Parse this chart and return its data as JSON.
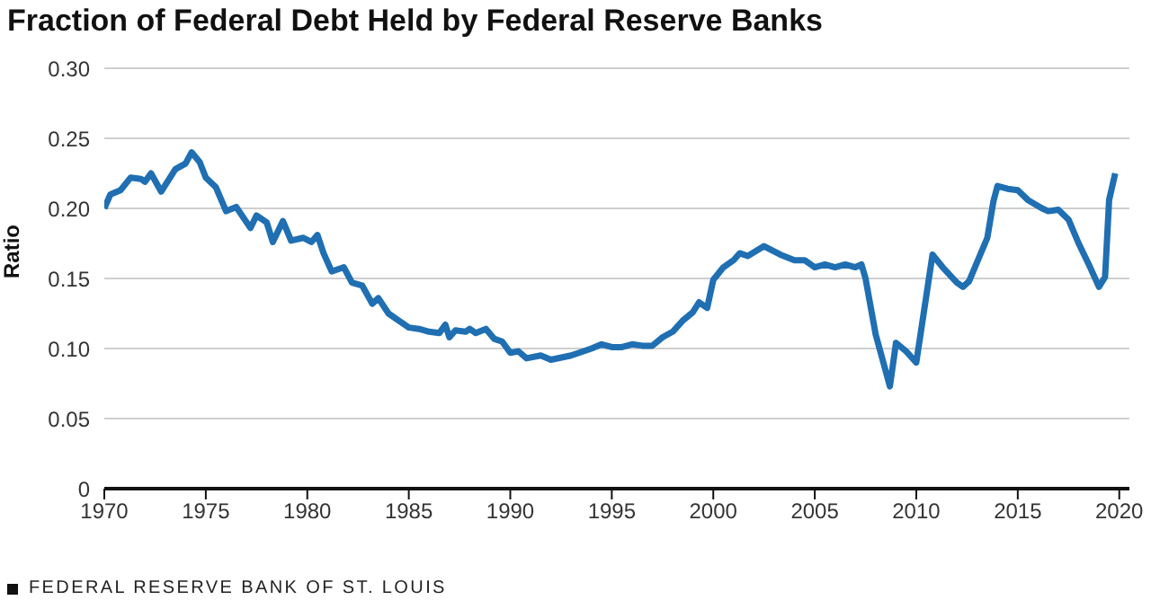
{
  "chart_data": {
    "type": "line",
    "title": "Fraction of Federal Debt Held by Federal Reserve Banks",
    "ylabel": "Ratio",
    "annotations": [
      "FEDERAL RESERVE BANK OF ST. LOUIS"
    ],
    "x": [
      1970,
      1970.3,
      1970.8,
      1971.3,
      1971.8,
      1972,
      1972.3,
      1972.8,
      1973.5,
      1974,
      1974.3,
      1974.7,
      1975,
      1975.5,
      1976,
      1976.5,
      1977.2,
      1977.5,
      1978,
      1978.3,
      1978.8,
      1979.2,
      1979.8,
      1980.2,
      1980.5,
      1980.8,
      1981.2,
      1981.8,
      1982.2,
      1982.7,
      1983.2,
      1983.5,
      1984,
      1984.5,
      1985,
      1985.5,
      1986,
      1986.5,
      1986.8,
      1987,
      1987.3,
      1987.8,
      1988,
      1988.3,
      1988.8,
      1989.2,
      1989.6,
      1990,
      1990.4,
      1990.8,
      1991.5,
      1992,
      1993,
      1994,
      1994.5,
      1995,
      1995.5,
      1996,
      1996.5,
      1997,
      1997.5,
      1998,
      1998.5,
      1999,
      1999.3,
      1999.7,
      2000,
      2000.5,
      2001,
      2001.3,
      2001.7,
      2002.5,
      2003.3,
      2004,
      2004.5,
      2005,
      2005.5,
      2006,
      2006.5,
      2007,
      2007.3,
      2007.5,
      2008,
      2008.7,
      2009,
      2009.5,
      2010,
      2010.8,
      2011.3,
      2012,
      2012.3,
      2012.6,
      2013.5,
      2013.8,
      2014,
      2014.5,
      2015,
      2015.5,
      2016.2,
      2016.5,
      2017,
      2017.5,
      2018,
      2018.5,
      2019,
      2019.3,
      2019.5,
      2019.8
    ],
    "series": [
      {
        "color": "#1f6fb2",
        "values": [
          0.2,
          0.21,
          0.213,
          0.222,
          0.221,
          0.219,
          0.225,
          0.212,
          0.228,
          0.232,
          0.24,
          0.233,
          0.222,
          0.215,
          0.198,
          0.201,
          0.186,
          0.195,
          0.19,
          0.176,
          0.191,
          0.177,
          0.179,
          0.176,
          0.181,
          0.168,
          0.155,
          0.158,
          0.147,
          0.145,
          0.132,
          0.136,
          0.125,
          0.12,
          0.115,
          0.114,
          0.112,
          0.111,
          0.117,
          0.108,
          0.113,
          0.112,
          0.114,
          0.111,
          0.114,
          0.107,
          0.105,
          0.097,
          0.098,
          0.093,
          0.095,
          0.092,
          0.095,
          0.1,
          0.103,
          0.101,
          0.101,
          0.103,
          0.102,
          0.102,
          0.108,
          0.112,
          0.12,
          0.126,
          0.133,
          0.129,
          0.149,
          0.158,
          0.163,
          0.168,
          0.166,
          0.173,
          0.167,
          0.163,
          0.163,
          0.158,
          0.16,
          0.158,
          0.16,
          0.158,
          0.16,
          0.15,
          0.11,
          0.073,
          0.104,
          0.098,
          0.09,
          0.167,
          0.158,
          0.147,
          0.144,
          0.148,
          0.179,
          0.205,
          0.216,
          0.214,
          0.213,
          0.206,
          0.2,
          0.198,
          0.199,
          0.192,
          0.175,
          0.16,
          0.144,
          0.151,
          0.206,
          0.225
        ]
      }
    ],
    "xlim": [
      1970,
      2020.5
    ],
    "xticks": [
      1970,
      1975,
      1980,
      1985,
      1990,
      1995,
      2000,
      2005,
      2010,
      2015,
      2020
    ],
    "ylim": [
      0,
      0.3
    ],
    "yticks": [
      0,
      0.05,
      {
        "value": 0.1,
        "label": "0.10"
      },
      0.15,
      {
        "value": 0.2,
        "label": "0.20"
      },
      0.25,
      {
        "value": 0.3,
        "label": "0.30"
      }
    ],
    "grid": "y",
    "marker": "none",
    "line_style": "solid"
  }
}
